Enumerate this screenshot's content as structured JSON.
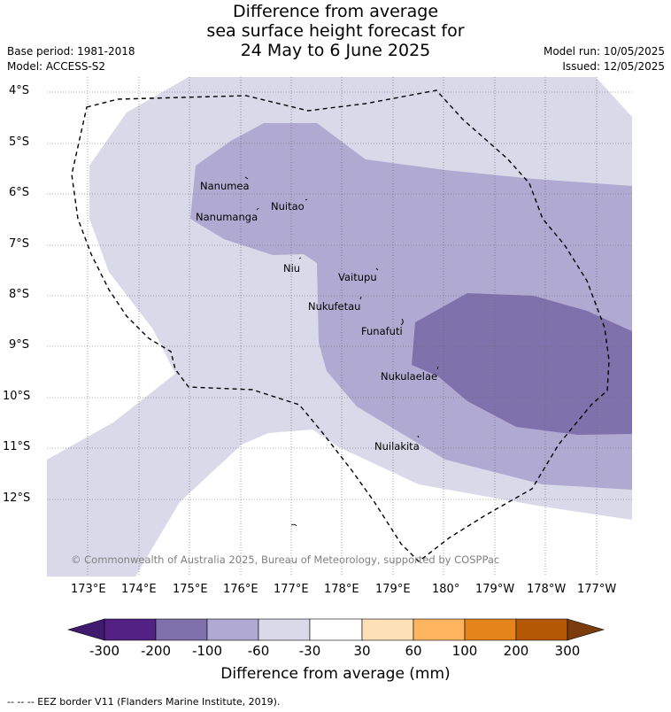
{
  "title": {
    "line1": "Difference from average",
    "line2": "sea surface height forecast for",
    "line3": "24 May to 6 June 2025"
  },
  "meta": {
    "base_period": "Base period: 1981-2018",
    "model": "Model: ACCESS-S2",
    "model_run": "Model run: 10/05/2025",
    "issued": "Issued: 12/05/2025"
  },
  "map": {
    "lat_labels": [
      "4°S",
      "5°S",
      "6°S",
      "7°S",
      "8°S",
      "9°S",
      "10°S",
      "11°S",
      "12°S"
    ],
    "lon_labels": [
      "173°E",
      "174°E",
      "175°E",
      "176°E",
      "177°E",
      "178°E",
      "179°E",
      "180°",
      "179°W",
      "178°W",
      "177°W"
    ],
    "places": [
      "Nanumea",
      "Nuitao",
      "Nanumanga",
      "Niu",
      "Vaitupu",
      "Nukufetau",
      "Funafuti",
      "Nukulaelae",
      "Nuilakita"
    ],
    "copyright": "© Commonwealth of Australia 2025, Bureau of Meteorology, supported by COSPPac",
    "colors": {
      "band_-60_-30": "#d9d9ea",
      "band_-100_-60": "#b0a9d2",
      "band_-200_-100": "#7f72ac"
    }
  },
  "colorbar": {
    "labels": [
      "-300",
      "-200",
      "-100",
      "-60",
      "-30",
      "30",
      "60",
      "100",
      "200",
      "300"
    ],
    "title": "Difference from average (mm)",
    "colors": [
      "#3f1a6e",
      "#532083",
      "#7f72ac",
      "#b0a9d2",
      "#d9d9ea",
      "#ffffff",
      "#fde0b6",
      "#fdb45f",
      "#e5841b",
      "#b55806",
      "#7a3c0c"
    ]
  },
  "legend": {
    "eez": "-- -- -- EEZ border V11 (Flanders Marine Institute, 2019)."
  }
}
